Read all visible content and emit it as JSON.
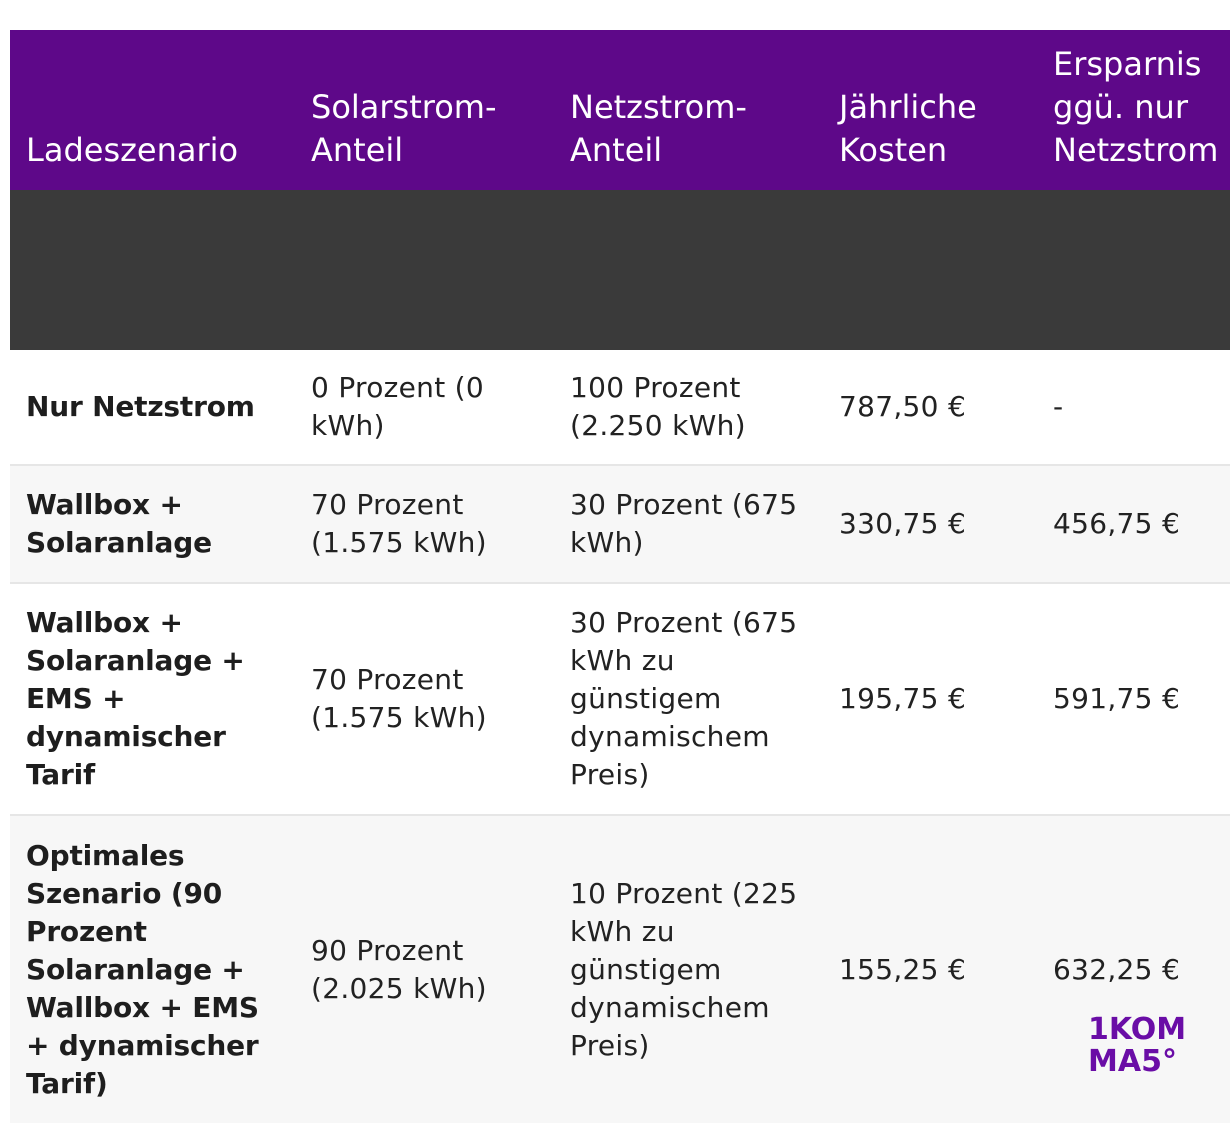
{
  "table": {
    "headers": [
      "Ladeszenario",
      "Solarstrom-Anteil",
      "Netzstrom-Anteil",
      "Jährliche Kosten",
      "Ersparnis ggü. nur Netzstrom"
    ],
    "rows": [
      [
        "Nur Netzstrom",
        "0 Prozent (0 kWh)",
        "100 Prozent (2.250 kWh)",
        "787,50 €",
        "-"
      ],
      [
        "Wallbox + Solaranlage",
        "70 Prozent (1.575 kWh)",
        "30 Prozent (675 kWh)",
        "330,75 €",
        "456,75 €"
      ],
      [
        "Wallbox + Solaranlage + EMS + dynamischer Tarif",
        "70 Prozent (1.575 kWh)",
        "30 Prozent (675 kWh zu günstigem dynamischem Preis)",
        "195,75 €",
        "591,75 €"
      ],
      [
        "Optimales Szenario (90 Prozent Solaranlage + Wallbox + EMS + dynamischer Tarif)",
        "90 Prozent (2.025 kWh)",
        "10 Prozent (225 kWh zu günstigem dynamischem Preis)",
        "155,25 €",
        "632,25 €"
      ]
    ]
  },
  "logo": {
    "line1": "1KOM",
    "line2": "MA5°"
  },
  "colors": {
    "header_bg": "#5e0889",
    "header_text": "#ffffff",
    "brand": "#6a0da6"
  }
}
